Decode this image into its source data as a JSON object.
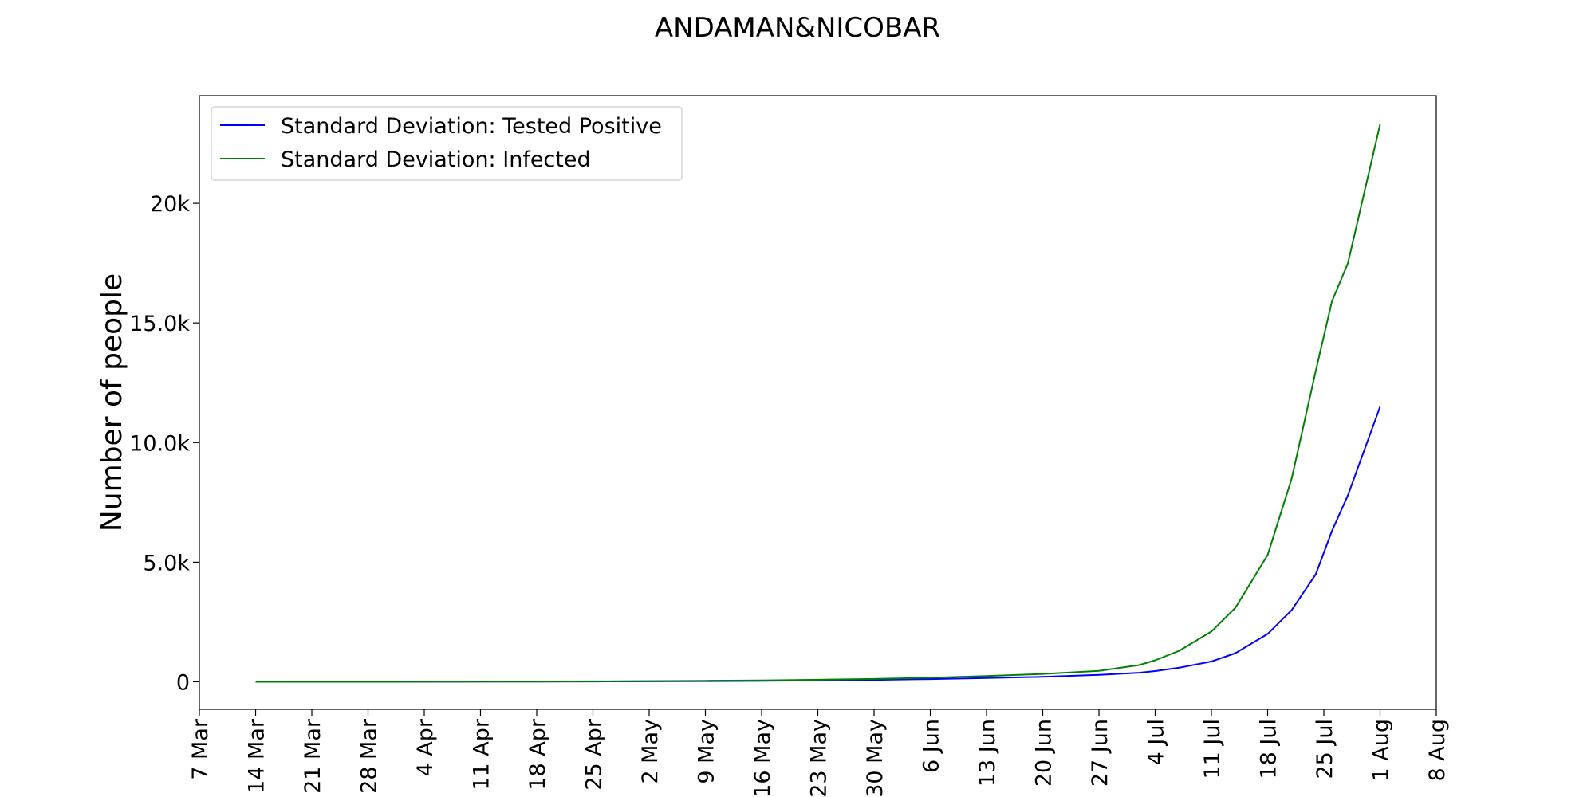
{
  "chart_data": {
    "type": "line",
    "title": "ANDAMAN&NICOBAR",
    "xlabel": "",
    "ylabel": "Number of people",
    "x_ticks": [
      "7 Mar",
      "14 Mar",
      "21 Mar",
      "28 Mar",
      "4 Apr",
      "11 Apr",
      "18 Apr",
      "25 Apr",
      "2 May",
      "9 May",
      "16 May",
      "23 May",
      "30 May",
      "6 Jun",
      "13 Jun",
      "20 Jun",
      "27 Jun",
      "4 Jul",
      "11 Jul",
      "18 Jul",
      "25 Jul",
      "1 Aug",
      "8 Aug"
    ],
    "xlim": [
      "7 Mar",
      "8 Aug"
    ],
    "y_ticks": [
      {
        "value": 0,
        "label": "0"
      },
      {
        "value": 5000,
        "label": "5.0k"
      },
      {
        "value": 10000,
        "label": "10.0k"
      },
      {
        "value": 15000,
        "label": "15.0k"
      },
      {
        "value": 20000,
        "label": "20k"
      }
    ],
    "ylim": [
      -1150,
      24500
    ],
    "grid": false,
    "legend_position": "top-left",
    "x_dates": [
      "14 Mar",
      "21 Mar",
      "28 Mar",
      "4 Apr",
      "11 Apr",
      "18 Apr",
      "25 Apr",
      "2 May",
      "9 May",
      "16 May",
      "23 May",
      "30 May",
      "6 Jun",
      "13 Jun",
      "20 Jun",
      "27 Jun",
      "2 Jul",
      "4 Jul",
      "7 Jul",
      "11 Jul",
      "14 Jul",
      "18 Jul",
      "21 Jul",
      "24 Jul",
      "26 Jul",
      "28 Jul",
      "1 Aug"
    ],
    "series": [
      {
        "name": "Standard Deviation: Tested Positive",
        "color": "#0000ff",
        "values": [
          0,
          1,
          2,
          4,
          6,
          9,
          14,
          20,
          28,
          40,
          57,
          80,
          112,
          155,
          210,
          290,
          380,
          450,
          590,
          850,
          1200,
          2000,
          3000,
          4500,
          6300,
          7800,
          11500
        ]
      },
      {
        "name": "Standard Deviation: Infected",
        "color": "#008000",
        "values": [
          0,
          1,
          3,
          5,
          8,
          13,
          20,
          30,
          42,
          60,
          85,
          120,
          170,
          240,
          330,
          460,
          700,
          900,
          1300,
          2100,
          3100,
          5300,
          8500,
          13000,
          15900,
          17500,
          23300
        ]
      }
    ]
  }
}
